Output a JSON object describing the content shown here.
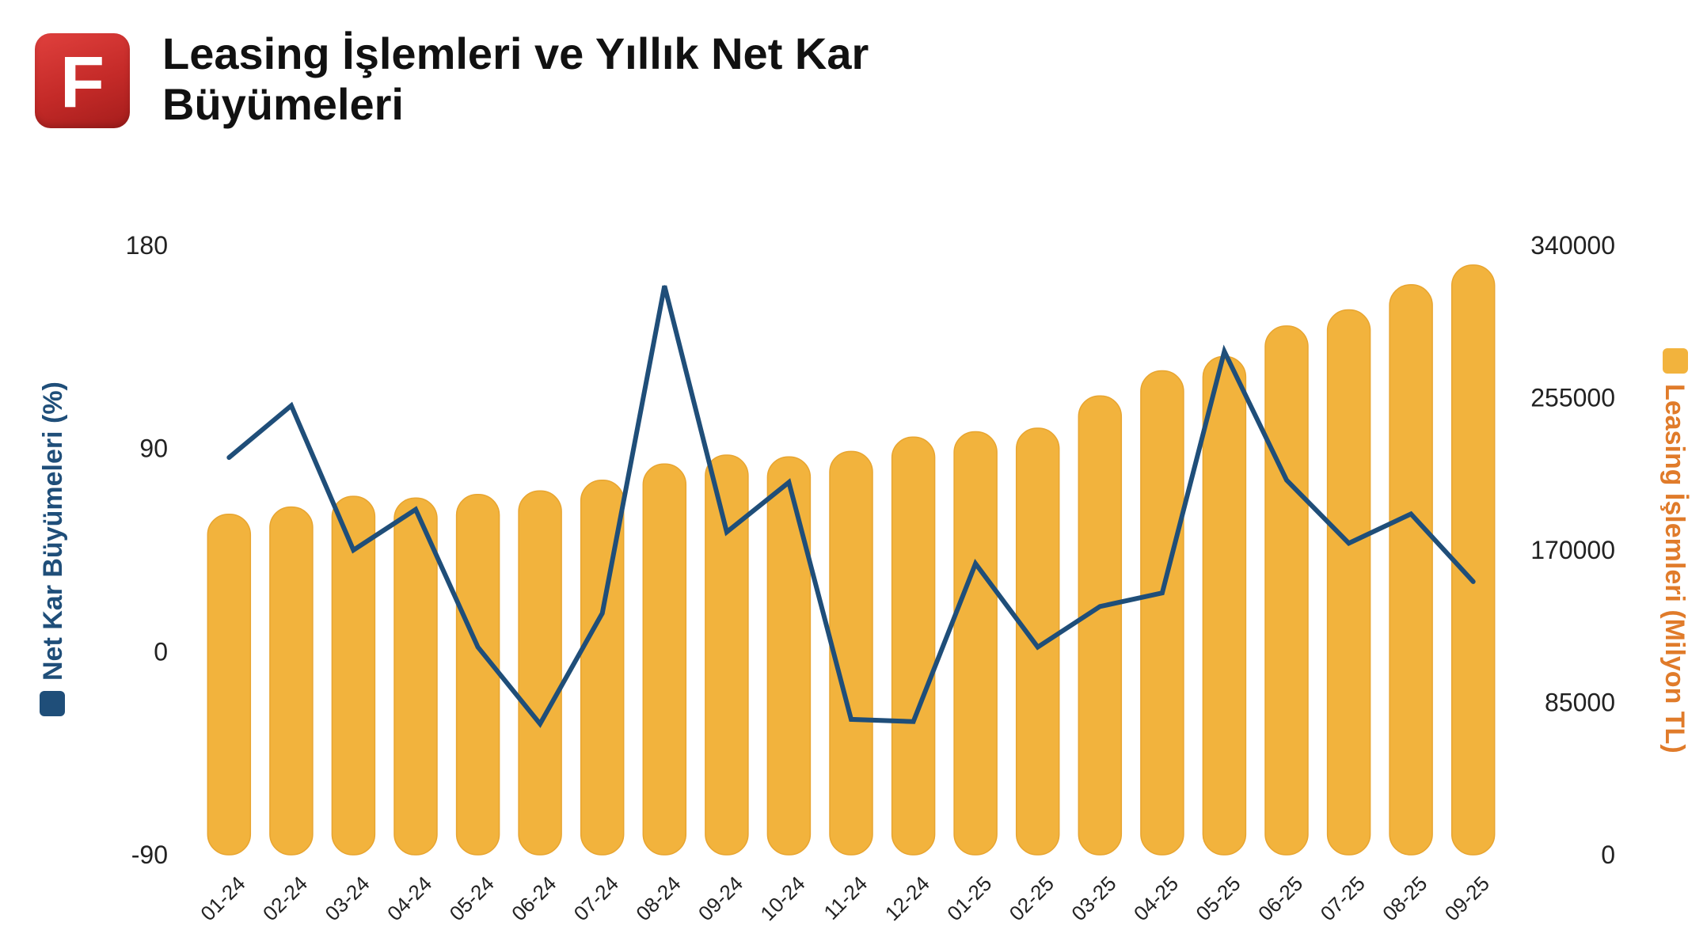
{
  "logo": {
    "letter": "F"
  },
  "title": "Leasing İşlemleri ve Yıllık Net Kar Büyümeleri",
  "chart_data": {
    "type": "bar",
    "categories": [
      "01-24",
      "02-24",
      "03-24",
      "04-24",
      "05-24",
      "06-24",
      "07-24",
      "08-24",
      "09-24",
      "10-24",
      "11-24",
      "12-24",
      "01-25",
      "02-25",
      "03-25",
      "04-25",
      "05-25",
      "06-25",
      "07-25",
      "08-25",
      "09-25"
    ],
    "series": [
      {
        "name": "Leasing İşlemleri (Milyon TL)",
        "type": "bar",
        "axis": "right",
        "color": "#F2B33D",
        "values": [
          190000,
          194000,
          200000,
          199000,
          201000,
          203000,
          209000,
          218000,
          223000,
          222000,
          225000,
          233000,
          236000,
          238000,
          256000,
          270000,
          278000,
          295000,
          304000,
          318000,
          329000
        ]
      },
      {
        "name": "Net Kar Büyümeleri (%)",
        "type": "line",
        "axis": "left",
        "color": "#1F4E79",
        "values": [
          86,
          109,
          45,
          63,
          2,
          -32,
          17,
          162,
          53,
          75,
          -30,
          -31,
          39,
          2,
          20,
          26,
          133,
          76,
          48,
          61,
          31
        ]
      }
    ],
    "y_left": {
      "label": "Net Kar Büyümeleri (%)",
      "ticks": [
        "180",
        "90",
        "0",
        "-90"
      ],
      "ylim": [
        -90,
        180
      ]
    },
    "y_right": {
      "label": "Leasing İşlemleri (Milyon TL)",
      "ticks": [
        "340000",
        "255000",
        "170000",
        "85000",
        "0"
      ],
      "ylim": [
        0,
        340000
      ]
    },
    "legend": "axis-titles",
    "grid": false
  }
}
